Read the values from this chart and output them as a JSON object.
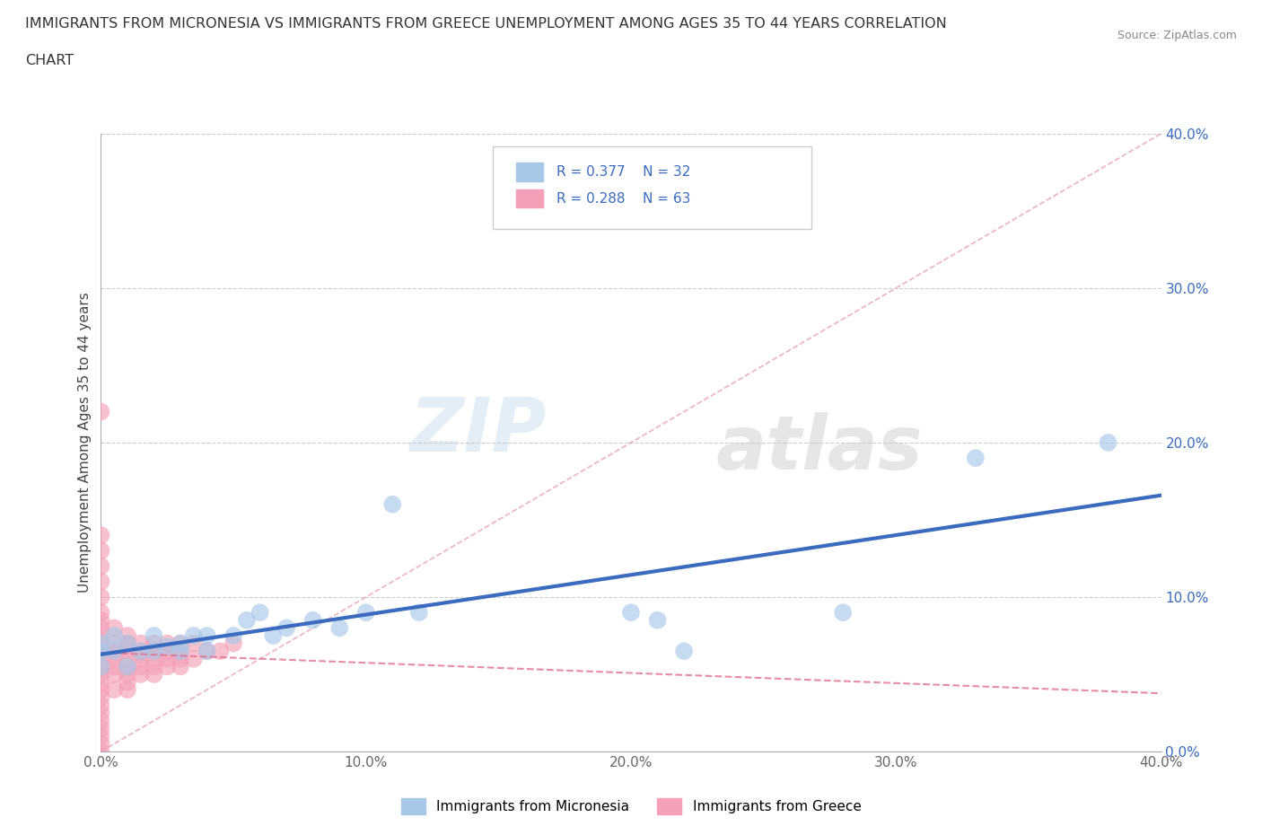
{
  "title_line1": "IMMIGRANTS FROM MICRONESIA VS IMMIGRANTS FROM GREECE UNEMPLOYMENT AMONG AGES 35 TO 44 YEARS CORRELATION",
  "title_line2": "CHART",
  "source": "Source: ZipAtlas.com",
  "ylabel": "Unemployment Among Ages 35 to 44 years",
  "xlim": [
    0,
    0.4
  ],
  "ylim": [
    0,
    0.4
  ],
  "xticks": [
    0.0,
    0.1,
    0.2,
    0.3,
    0.4
  ],
  "yticks": [
    0.0,
    0.1,
    0.2,
    0.3,
    0.4
  ],
  "xticklabels": [
    "0.0%",
    "10.0%",
    "20.0%",
    "30.0%",
    "40.0%"
  ],
  "yticklabels": [
    "0.0%",
    "10.0%",
    "20.0%",
    "30.0%",
    "40.0%"
  ],
  "micronesia_color": "#a8c8e8",
  "greece_color": "#f4a0b8",
  "micronesia_R": 0.377,
  "micronesia_N": 32,
  "greece_R": 0.288,
  "greece_N": 63,
  "regression_line_color_micronesia": "#3a6bbf",
  "regression_line_color_greece": "#e07090",
  "diag_line_color": "#e8a0b0",
  "watermark_zip": "ZIP",
  "watermark_atlas": "atlas",
  "legend_label_micronesia": "Immigrants from Micronesia",
  "legend_label_greece": "Immigrants from Greece",
  "mic_x": [
    0.0,
    0.0,
    0.0,
    0.005,
    0.005,
    0.01,
    0.01,
    0.015,
    0.02,
    0.02,
    0.025,
    0.03,
    0.03,
    0.035,
    0.04,
    0.04,
    0.05,
    0.055,
    0.06,
    0.065,
    0.07,
    0.08,
    0.09,
    0.1,
    0.11,
    0.12,
    0.2,
    0.21,
    0.22,
    0.28,
    0.33,
    0.38
  ],
  "mic_y": [
    0.065,
    0.07,
    0.055,
    0.065,
    0.075,
    0.055,
    0.07,
    0.065,
    0.065,
    0.075,
    0.068,
    0.065,
    0.07,
    0.075,
    0.065,
    0.075,
    0.075,
    0.085,
    0.09,
    0.075,
    0.08,
    0.085,
    0.08,
    0.09,
    0.16,
    0.09,
    0.09,
    0.085,
    0.065,
    0.09,
    0.19,
    0.2
  ],
  "gre_x": [
    0.0,
    0.0,
    0.0,
    0.0,
    0.0,
    0.0,
    0.0,
    0.0,
    0.0,
    0.0,
    0.0,
    0.0,
    0.0,
    0.0,
    0.0,
    0.0,
    0.0,
    0.0,
    0.0,
    0.0,
    0.0,
    0.0,
    0.0,
    0.0,
    0.0,
    0.005,
    0.005,
    0.005,
    0.005,
    0.005,
    0.005,
    0.005,
    0.01,
    0.01,
    0.01,
    0.01,
    0.01,
    0.01,
    0.01,
    0.01,
    0.015,
    0.015,
    0.015,
    0.015,
    0.015,
    0.02,
    0.02,
    0.02,
    0.02,
    0.02,
    0.025,
    0.025,
    0.025,
    0.025,
    0.03,
    0.03,
    0.03,
    0.03,
    0.035,
    0.035,
    0.04,
    0.045,
    0.05
  ],
  "gre_y": [
    0.0,
    0.005,
    0.01,
    0.015,
    0.02,
    0.025,
    0.03,
    0.035,
    0.04,
    0.045,
    0.05,
    0.055,
    0.06,
    0.065,
    0.07,
    0.075,
    0.08,
    0.085,
    0.09,
    0.1,
    0.11,
    0.12,
    0.13,
    0.14,
    0.22,
    0.04,
    0.05,
    0.055,
    0.06,
    0.065,
    0.07,
    0.08,
    0.04,
    0.045,
    0.05,
    0.055,
    0.06,
    0.065,
    0.07,
    0.075,
    0.05,
    0.055,
    0.06,
    0.065,
    0.07,
    0.05,
    0.055,
    0.06,
    0.065,
    0.07,
    0.055,
    0.06,
    0.065,
    0.07,
    0.055,
    0.06,
    0.065,
    0.07,
    0.06,
    0.07,
    0.065,
    0.065,
    0.07
  ]
}
